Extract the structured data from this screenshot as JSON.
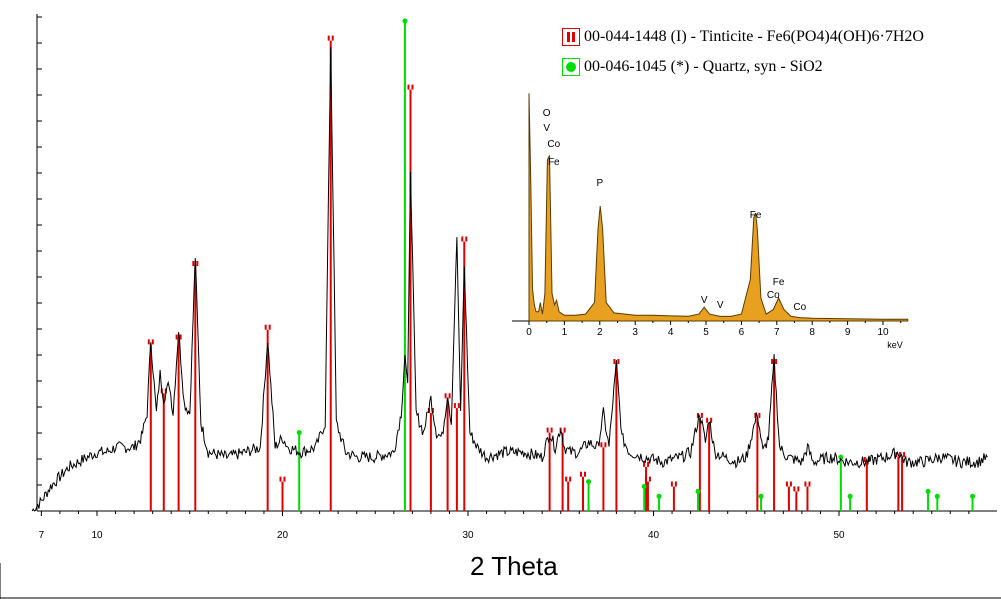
{
  "chart_data": [
    {
      "type": "line",
      "xlabel": "2 Theta",
      "xlim": [
        6,
        58
      ],
      "xticks": [
        7,
        10,
        20,
        30,
        40,
        50
      ],
      "grid": false,
      "legend_placement": "top-right",
      "legend": [
        {
          "label": "00-044-1448 (I) - Tinticite - Fe6(PO4)4(OH)6·7H2O",
          "color": "#e00000",
          "marker": "bars"
        },
        {
          "label": "00-046-1045 (*) - Quartz, syn - SiO2",
          "color": "#00dd00",
          "marker": "dot"
        }
      ],
      "series": [
        {
          "name": "00-044-1448 (I) - Tinticite - Fe6(PO4)4(OH)6·7H2O",
          "style": "sticks",
          "color": "#e00000",
          "x": [
            12.9,
            13.6,
            14.4,
            15.3,
            19.2,
            20.0,
            22.6,
            26.9,
            28.0,
            28.9,
            29.4,
            29.8,
            34.4,
            35.1,
            35.4,
            36.2,
            37.3,
            38.0,
            39.7,
            39.6,
            41.1,
            42.5,
            43.0,
            45.6,
            46.5,
            47.3,
            47.7,
            48.3,
            51.5,
            53.2,
            53.4
          ],
          "y": [
            34,
            24,
            35,
            50,
            37,
            6,
            96,
            86,
            20,
            23,
            21,
            55,
            16,
            16,
            6,
            7,
            13,
            30,
            6,
            9,
            5,
            19,
            18,
            19,
            30,
            5,
            4,
            5,
            10,
            11,
            11
          ]
        },
        {
          "name": "00-046-1045 (*) - Quartz, syn - SiO2",
          "style": "sticks",
          "color": "#00dd00",
          "x": [
            20.9,
            26.6,
            36.5,
            39.5,
            40.3,
            42.4,
            45.8,
            50.1,
            50.6,
            54.8,
            55.3,
            57.2
          ],
          "y": [
            16,
            100,
            6,
            5,
            3,
            4,
            3,
            11,
            3,
            4,
            3,
            3
          ]
        },
        {
          "name": "",
          "style": "line",
          "color": "#000000",
          "x": [
            6.5,
            7.0,
            7.5,
            8.0,
            8.5,
            9.0,
            9.5,
            10.0,
            10.5,
            11.0,
            11.5,
            12.0,
            12.4,
            12.7,
            12.9,
            13.2,
            13.4,
            13.6,
            13.9,
            14.1,
            14.4,
            14.7,
            15.0,
            15.3,
            15.6,
            16.0,
            17.0,
            18.0,
            18.8,
            19.2,
            19.6,
            20.0,
            20.3,
            21.0,
            21.8,
            22.3,
            22.6,
            22.9,
            23.4,
            24.0,
            25.0,
            26.0,
            26.4,
            26.6,
            26.75,
            26.9,
            27.2,
            27.6,
            28.0,
            28.3,
            28.6,
            28.9,
            29.1,
            29.4,
            29.6,
            29.8,
            30.1,
            30.5,
            31.0,
            32.0,
            33.0,
            34.0,
            34.4,
            34.7,
            35.0,
            35.2,
            35.5,
            36.0,
            36.5,
            37.0,
            37.3,
            37.6,
            37.8,
            38.0,
            38.3,
            38.7,
            39.5,
            40.5,
            41.5,
            42.0,
            42.5,
            42.8,
            43.0,
            43.3,
            43.8,
            44.5,
            45.0,
            45.6,
            45.9,
            46.2,
            46.5,
            46.8,
            47.2,
            48.0,
            48.3,
            48.6,
            49.5,
            50.5,
            51.5,
            52.5,
            53.2,
            53.6,
            54.5,
            55.5,
            56.5,
            57.5,
            58.0
          ],
          "y": [
            0,
            2,
            5,
            7,
            9,
            10,
            11,
            12,
            12,
            13,
            13,
            13,
            15,
            20,
            35,
            20,
            28,
            23,
            26,
            20,
            37,
            22,
            20,
            52,
            18,
            12,
            11,
            12,
            13,
            35,
            13,
            15,
            13,
            12,
            13,
            18,
            95,
            18,
            12,
            11,
            11,
            12,
            20,
            32,
            25,
            70,
            20,
            16,
            23,
            16,
            15,
            24,
            18,
            56,
            20,
            50,
            16,
            13,
            11,
            12,
            12,
            11,
            16,
            13,
            17,
            13,
            12,
            12,
            14,
            13,
            20,
            13,
            22,
            30,
            15,
            12,
            11,
            10,
            11,
            12,
            20,
            14,
            19,
            12,
            11,
            10,
            11,
            20,
            12,
            15,
            31,
            13,
            11,
            10,
            13,
            10,
            11,
            10,
            10,
            11,
            12,
            10,
            10,
            11,
            10,
            10,
            11
          ]
        }
      ]
    },
    {
      "type": "area",
      "xlabel": "keV",
      "xlim": [
        -0.2,
        10.7
      ],
      "xticks": [
        0,
        1,
        2,
        3,
        4,
        5,
        6,
        7,
        8,
        9,
        10
      ],
      "grid": false,
      "annotations": [
        {
          "text": "O",
          "x": 0.5
        },
        {
          "text": "V",
          "x": 0.5
        },
        {
          "text": "Co",
          "x": 0.7
        },
        {
          "text": "Fe",
          "x": 0.7
        },
        {
          "text": "P",
          "x": 2.0
        },
        {
          "text": "V",
          "x": 4.95
        },
        {
          "text": "V",
          "x": 5.4
        },
        {
          "text": "Fe",
          "x": 6.4
        },
        {
          "text": "Fe",
          "x": 7.05
        },
        {
          "text": "Co",
          "x": 6.9
        },
        {
          "text": "Co",
          "x": 7.65
        }
      ],
      "series": [
        {
          "name": "",
          "color": "#e8a020",
          "x": [
            0.0,
            0.05,
            0.1,
            0.15,
            0.2,
            0.27,
            0.32,
            0.38,
            0.45,
            0.52,
            0.58,
            0.65,
            0.72,
            0.78,
            0.85,
            1.0,
            1.3,
            1.6,
            1.85,
            1.95,
            2.01,
            2.08,
            2.18,
            2.4,
            3.0,
            3.5,
            4.0,
            4.5,
            4.8,
            4.95,
            5.1,
            5.4,
            5.7,
            6.0,
            6.25,
            6.35,
            6.4,
            6.45,
            6.55,
            6.7,
            6.9,
            7.05,
            7.2,
            7.4,
            7.65,
            8.0,
            9.0,
            10.0,
            10.7
          ],
          "y": [
            99,
            60,
            14,
            7,
            4,
            4,
            8,
            3,
            12,
            70,
            72,
            12,
            7,
            9,
            4,
            2.5,
            2.5,
            3,
            8,
            40,
            50,
            40,
            8,
            3.5,
            2.5,
            2.5,
            2.2,
            2.1,
            3,
            6,
            3,
            2,
            2,
            3,
            18,
            45,
            47,
            40,
            10,
            3,
            5,
            10,
            5,
            2,
            1.5,
            1.2,
            1,
            0.8,
            0.8
          ]
        }
      ]
    }
  ]
}
